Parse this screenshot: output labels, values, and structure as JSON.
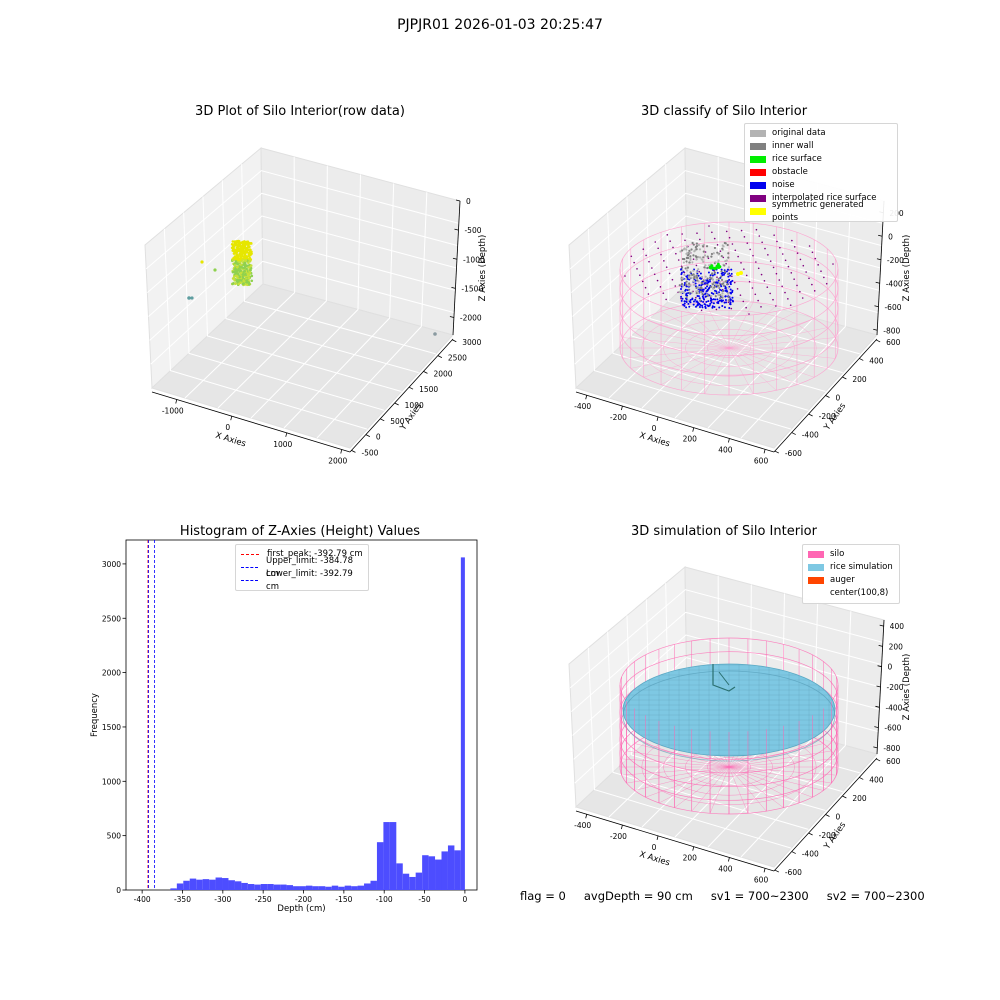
{
  "suptitle": "PJPJR01 2026-01-03 20:25:47",
  "flag_text": {
    "flag": "flag = 0",
    "avg_depth": "avgDepth = 90 cm",
    "sv1": "sv1 = 700~2300",
    "sv2": "sv2 = 700~2300"
  },
  "chart_data": [
    {
      "type": "scatter",
      "title": "3D Plot of Silo Interior(row data)",
      "xlabel": "X Axies",
      "ylabel": "Y Axies",
      "zlabel": "Z Axies (Depth)",
      "x_ticks": [
        "-1000",
        "0",
        "1000",
        "2000"
      ],
      "y_ticks": [
        "-500",
        "0",
        "500",
        "1000",
        "1500",
        "2000",
        "2500",
        "3000"
      ],
      "z_ticks": [
        "0",
        "-500",
        "-1000",
        "-1500",
        "-2000"
      ],
      "grid": true,
      "colors": {
        "main": "#e6e600",
        "secondary": "#8fd14f",
        "outlier": "#5f9ea0"
      }
    },
    {
      "type": "scatter",
      "title": "3D classify of Silo Interior",
      "xlabel": "X Axies",
      "ylabel": "Y Axies",
      "zlabel": "Z Axies (Depth)",
      "x_ticks": [
        "-400",
        "-200",
        "0",
        "200",
        "400",
        "600"
      ],
      "y_ticks": [
        "-600",
        "-400",
        "-200",
        "0",
        "200",
        "400",
        "600"
      ],
      "z_ticks": [
        "200",
        "0",
        "-200",
        "-400",
        "-600",
        "-800"
      ],
      "grid": true,
      "legend_position": "top-right",
      "legend": [
        {
          "label": "original data",
          "color": "#b3b3b3"
        },
        {
          "label": "inner wall",
          "color": "#808080"
        },
        {
          "label": "rice surface",
          "color": "#00ee00"
        },
        {
          "label": "obstacle",
          "color": "#ff0000"
        },
        {
          "label": "noise",
          "color": "#0000ee"
        },
        {
          "label": "interpolated rice surface",
          "color": "#800080"
        },
        {
          "label": "symmetric generated points",
          "color": "#ffff00"
        }
      ],
      "cylinder_color": "#ff99cc"
    },
    {
      "type": "bar",
      "title": "Histogram of Z-Axies (Height) Values",
      "xlabel": "Depth (cm)",
      "ylabel": "Frequency",
      "xlim": [
        -420,
        15
      ],
      "ylim": [
        0,
        3220
      ],
      "x_ticks": [
        -400,
        -350,
        -300,
        -250,
        -200,
        -150,
        -100,
        -50,
        0
      ],
      "y_ticks": [
        0,
        500,
        1000,
        1500,
        2000,
        2500,
        3000
      ],
      "bin_edges": [
        -365,
        -357,
        -349,
        -341,
        -333,
        -325,
        -317,
        -309,
        -301,
        -293,
        -285,
        -277,
        -269,
        -261,
        -253,
        -245,
        -237,
        -229,
        -221,
        -213,
        -205,
        -197,
        -189,
        -181,
        -173,
        -165,
        -157,
        -149,
        -141,
        -133,
        -125,
        -117,
        -109,
        -101,
        -93,
        -85,
        -77,
        -69,
        -61,
        -53,
        -45,
        -37,
        -29,
        -21,
        -13,
        -5,
        0
      ],
      "values": [
        15,
        60,
        85,
        105,
        95,
        100,
        95,
        115,
        110,
        90,
        80,
        65,
        55,
        50,
        55,
        55,
        50,
        50,
        45,
        35,
        35,
        40,
        35,
        35,
        30,
        40,
        30,
        40,
        35,
        40,
        60,
        85,
        440,
        625,
        625,
        245,
        150,
        120,
        160,
        320,
        310,
        280,
        355,
        410,
        365,
        3060
      ],
      "bar_color": "#4d4dff",
      "lines": [
        {
          "x": -392.79,
          "color": "#ff0000",
          "label": "first_peak: -392.79 cm"
        },
        {
          "x": -384.78,
          "color": "#0000ff",
          "label": "Upper_limit: -384.78 cm"
        },
        {
          "x": -392.79,
          "color": "#0000ff",
          "label": "Lower_limit: -392.79 cm"
        }
      ],
      "legend_position": "top-center",
      "grid": false
    },
    {
      "type": "scatter",
      "title": "3D simulation of Silo Interior",
      "xlabel": "X Axies",
      "ylabel": "Y Axies",
      "zlabel": "Z Axies (Depth)",
      "x_ticks": [
        "-400",
        "-200",
        "0",
        "200",
        "400",
        "600"
      ],
      "y_ticks": [
        "-600",
        "-400",
        "-200",
        "0",
        "200",
        "400",
        "600"
      ],
      "z_ticks": [
        "400",
        "200",
        "0",
        "-200",
        "-400",
        "-600",
        "-800"
      ],
      "grid": true,
      "legend_position": "top-right",
      "legend": [
        {
          "label": "silo",
          "color": "#ff66b3"
        },
        {
          "label": "rice simulation",
          "color": "#7ec8e3"
        },
        {
          "label": "auger",
          "color": "#ff4500"
        },
        {
          "label": "center(100,8)",
          "color": ""
        }
      ]
    }
  ]
}
